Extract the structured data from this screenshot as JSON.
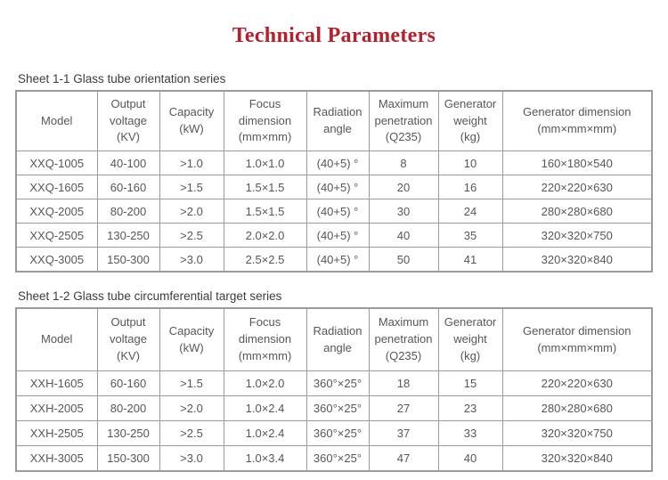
{
  "page": {
    "title": "Technical Parameters",
    "title_color": "#b4202e",
    "border_color": "#9b9b9b",
    "text_color": "#575757"
  },
  "tables": [
    {
      "caption": "Sheet 1-1 Glass tube orientation series",
      "headers": [
        "Model",
        "Output\nvoltage\n(KV)",
        "Capacity\n(kW)",
        "Focus\ndimension\n(mm×mm)",
        "Radiation\nangle",
        "Maximum\npenetration\n(Q235)",
        "Generator\nweight\n(kg)",
        "Generator dimension\n(mm×mm×mm)"
      ],
      "rows": [
        [
          "XXQ-1005",
          "40-100",
          ">1.0",
          "1.0×1.0",
          "(40+5) °",
          "8",
          "10",
          "160×180×540"
        ],
        [
          "XXQ-1605",
          "60-160",
          ">1.5",
          "1.5×1.5",
          "(40+5) °",
          "20",
          "16",
          "220×220×630"
        ],
        [
          "XXQ-2005",
          "80-200",
          ">2.0",
          "1.5×1.5",
          "(40+5) °",
          "30",
          "24",
          "280×280×680"
        ],
        [
          "XXQ-2505",
          "130-250",
          ">2.5",
          "2.0×2.0",
          "(40+5) °",
          "40",
          "35",
          "320×320×750"
        ],
        [
          "XXQ-3005",
          "150-300",
          ">3.0",
          "2.5×2.5",
          "(40+5) °",
          "50",
          "41",
          "320×320×840"
        ]
      ]
    },
    {
      "caption": "Sheet 1-2 Glass tube circumferential target series",
      "headers": [
        "Model",
        "Output\nvoltage\n(KV)",
        "Capacity\n(kW)",
        "Focus\ndimension\n(mm×mm)",
        "Radiation\nangle",
        "Maximum\npenetration\n(Q235)",
        "Generator\nweight\n(kg)",
        "Generator dimension\n(mm×mm×mm)"
      ],
      "rows": [
        [
          "XXH-1605",
          "60-160",
          ">1.5",
          "1.0×2.0",
          "360°×25°",
          "18",
          "15",
          "220×220×630"
        ],
        [
          "XXH-2005",
          "80-200",
          ">2.0",
          "1.0×2.4",
          "360°×25°",
          "27",
          "23",
          "280×280×680"
        ],
        [
          "XXH-2505",
          "130-250",
          ">2.5",
          "1.0×2.4",
          "360°×25°",
          "37",
          "33",
          "320×320×750"
        ],
        [
          "XXH-3005",
          "150-300",
          ">3.0",
          "1.0×3.4",
          "360°×25°",
          "47",
          "40",
          "320×320×840"
        ]
      ]
    }
  ]
}
